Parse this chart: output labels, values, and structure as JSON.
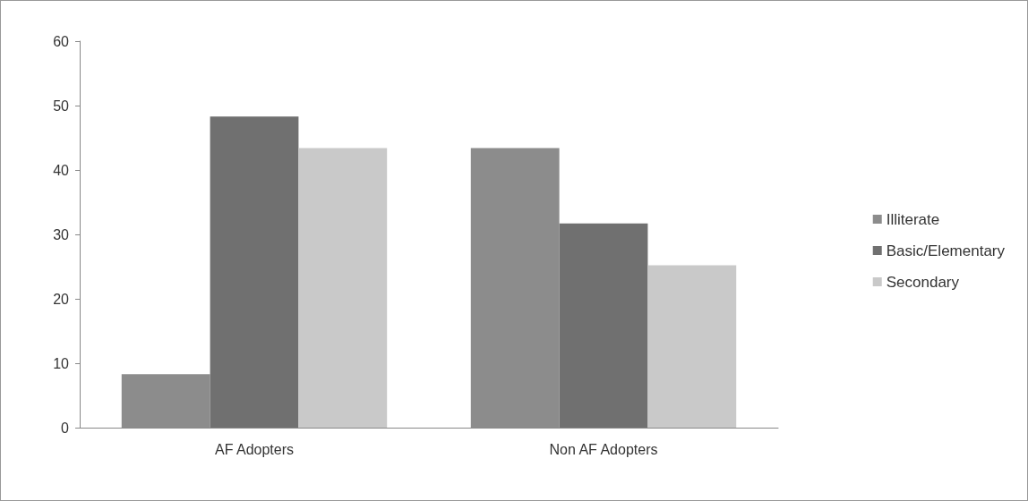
{
  "chart_data": {
    "type": "bar",
    "categories": [
      "AF Adopters",
      "Non AF Adopters"
    ],
    "series": [
      {
        "name": "Illiterate",
        "color": "#8c8c8c",
        "values": [
          8.3,
          43.4
        ]
      },
      {
        "name": "Basic/Elementary",
        "color": "#707070",
        "values": [
          48.3,
          31.7
        ]
      },
      {
        "name": "Secondary",
        "color": "#c9c9c9",
        "values": [
          43.4,
          25.2
        ]
      }
    ],
    "ylim": [
      0,
      60
    ],
    "yticks": [
      0,
      10,
      20,
      30,
      40,
      50,
      60
    ],
    "grid": false,
    "legend": "right"
  }
}
